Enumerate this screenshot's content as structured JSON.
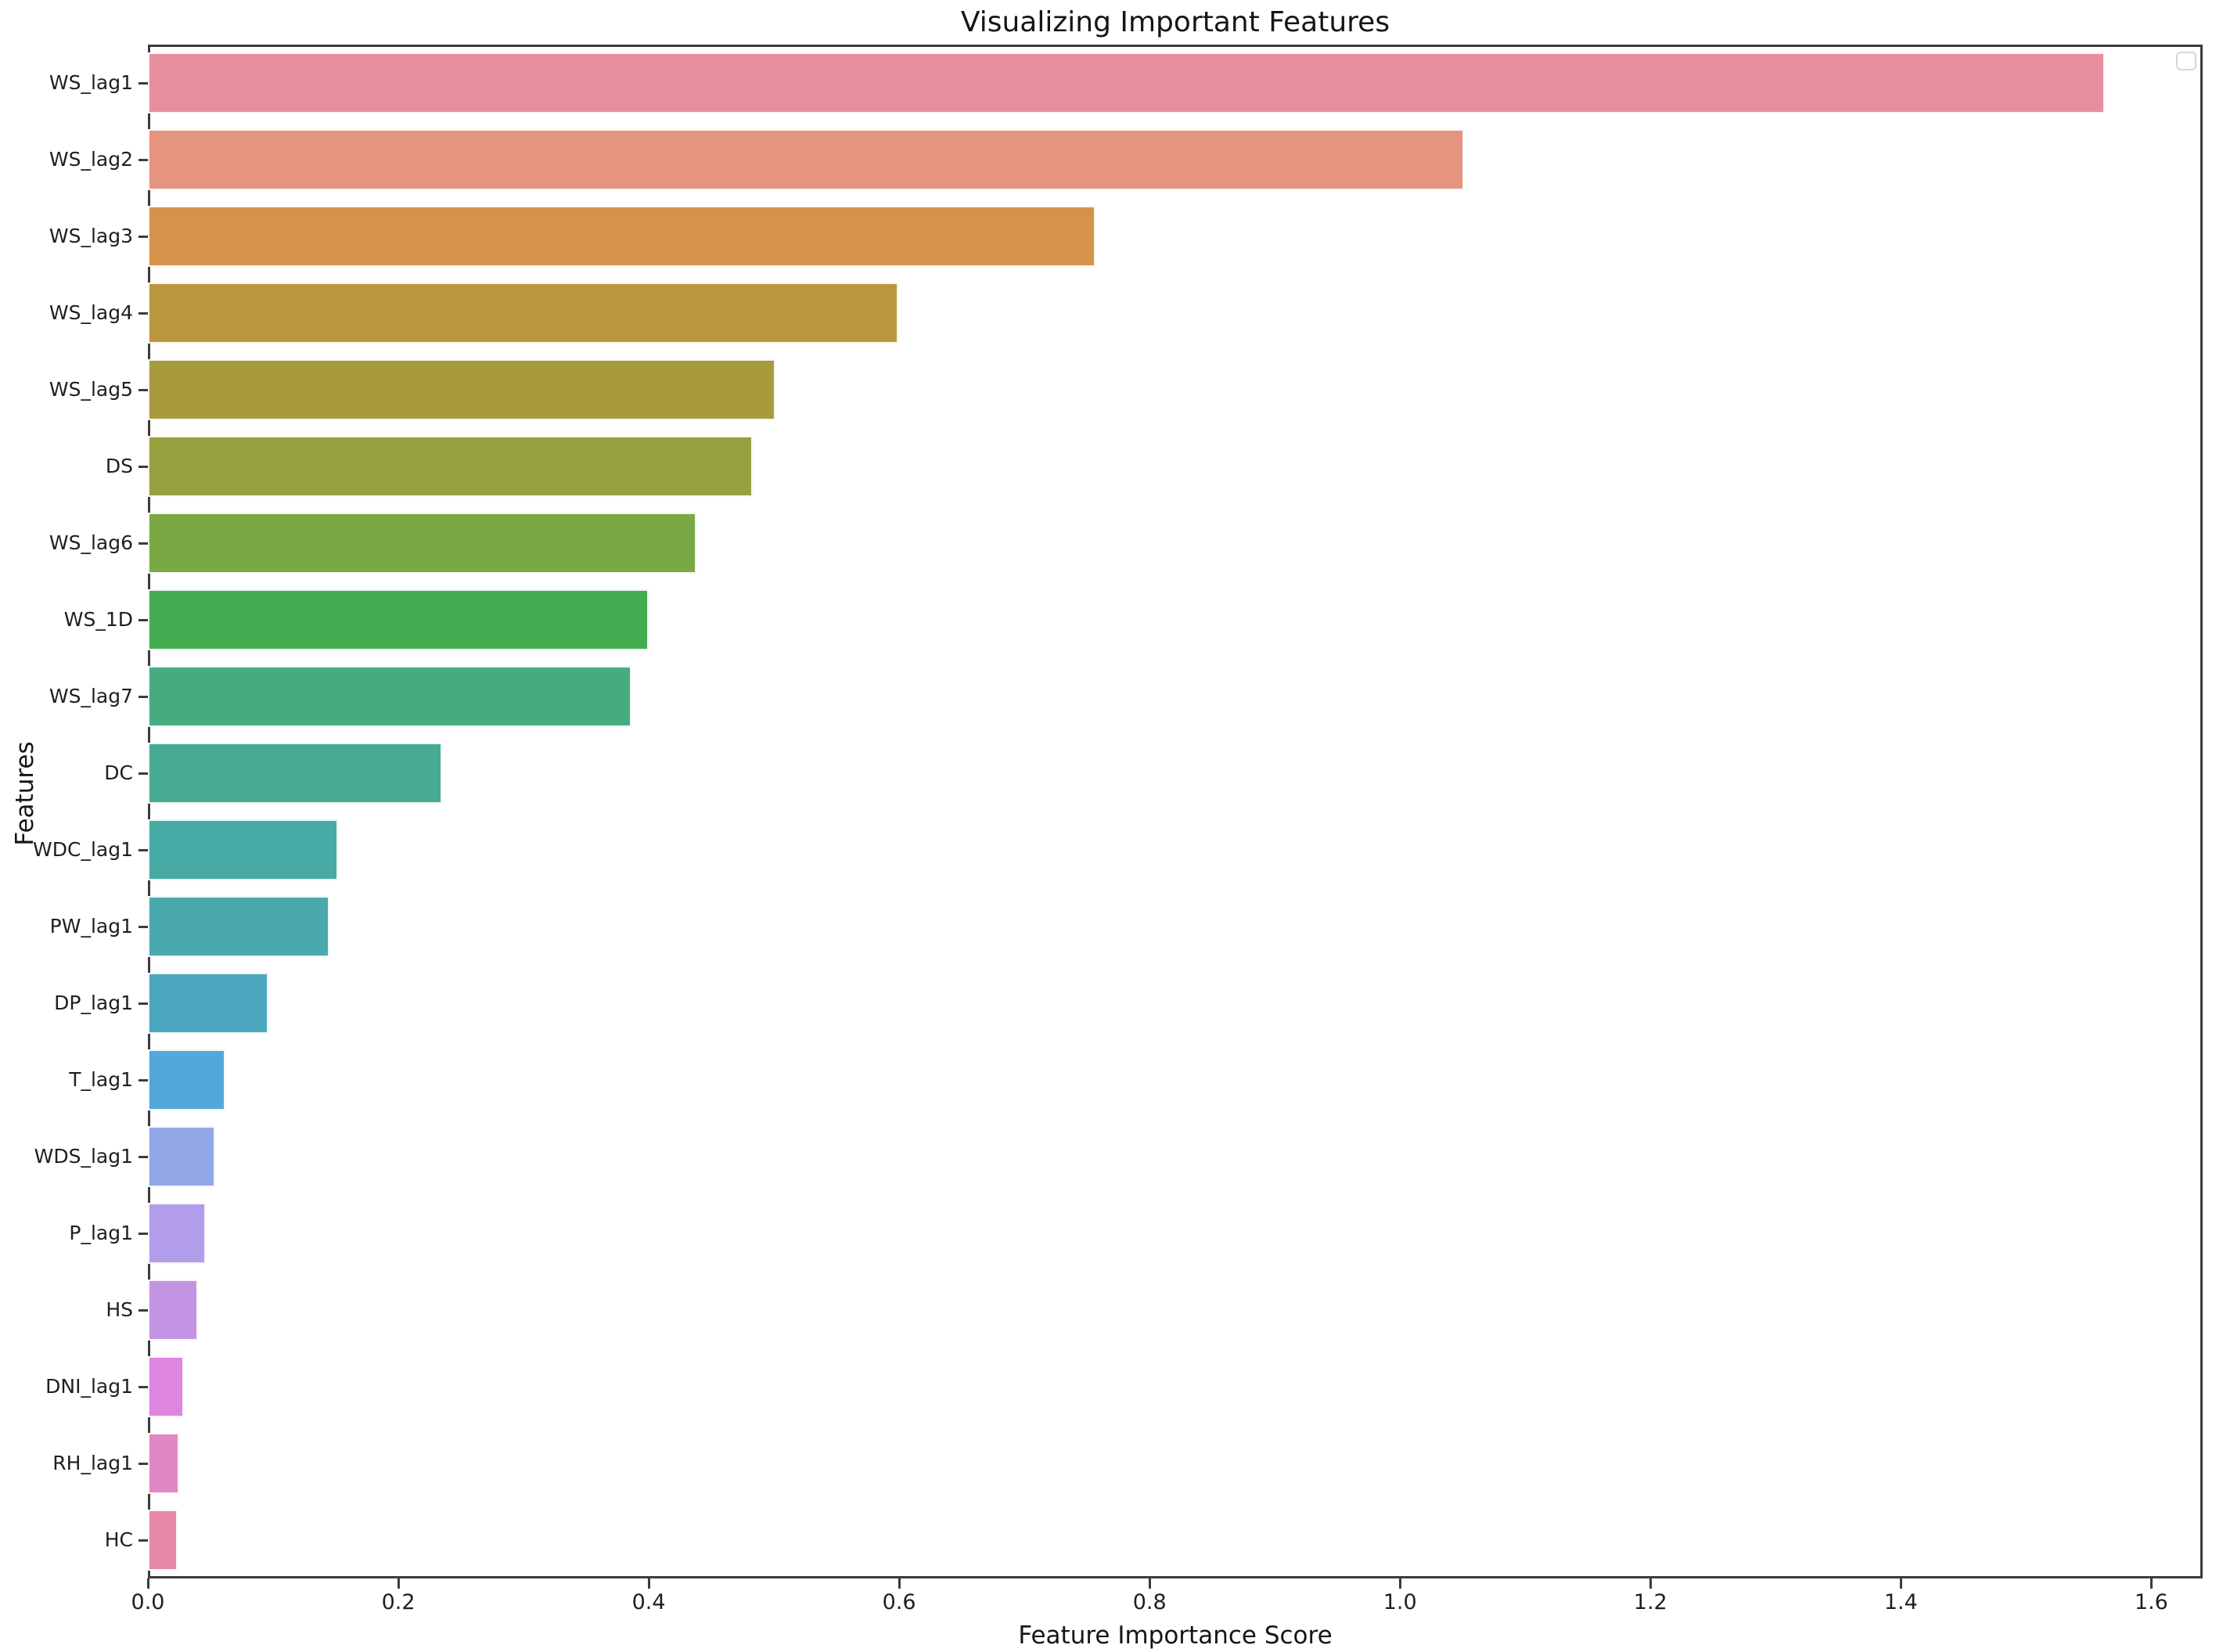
{
  "figure": {
    "background_color": "#ffffff",
    "spine_color": "#3c3c3c",
    "text_color": "#1f1f1f",
    "bar_edge_color": "#ffffff",
    "legend": {
      "present": true,
      "entries": [],
      "position": "top-right"
    }
  },
  "chart_data": {
    "type": "bar",
    "orientation": "horizontal",
    "title": "Visualizing Important Features",
    "xlabel": "Feature Importance Score",
    "ylabel": "Features",
    "categories": [
      "WS_lag1",
      "WS_lag2",
      "WS_lag3",
      "WS_lag4",
      "WS_lag5",
      "DS",
      "WS_lag6",
      "WS_1D",
      "WS_lag7",
      "DC",
      "WDC_lag1",
      "PW_lag1",
      "DP_lag1",
      "T_lag1",
      "WDS_lag1",
      "P_lag1",
      "HS",
      "DNI_lag1",
      "RH_lag1",
      "HC"
    ],
    "values": [
      1.563,
      1.051,
      0.757,
      0.599,
      0.501,
      0.483,
      0.438,
      0.4,
      0.386,
      0.235,
      0.152,
      0.145,
      0.096,
      0.062,
      0.054,
      0.046,
      0.04,
      0.029,
      0.025,
      0.024
    ],
    "colors": [
      "#e78f9e",
      "#e5947f",
      "#d6924a",
      "#bb9640",
      "#a89b3e",
      "#97a03f",
      "#7aa845",
      "#45ac51",
      "#46ab80",
      "#47ab93",
      "#48aaa4",
      "#4aa9ad",
      "#4ba7bd",
      "#52a8dc",
      "#92a8e8",
      "#b19de9",
      "#c494e4",
      "#dd85e0",
      "#e287c5",
      "#e78aa8"
    ],
    "xlim": [
      0,
      1.641
    ],
    "xticks": [
      0.0,
      0.2,
      0.4,
      0.6,
      0.8,
      1.0,
      1.2,
      1.4,
      1.6
    ],
    "xtick_labels": [
      "0.0",
      "0.2",
      "0.4",
      "0.6",
      "0.8",
      "1.0",
      "1.2",
      "1.4",
      "1.6"
    ],
    "grid": false,
    "legend_position": "upper right"
  }
}
